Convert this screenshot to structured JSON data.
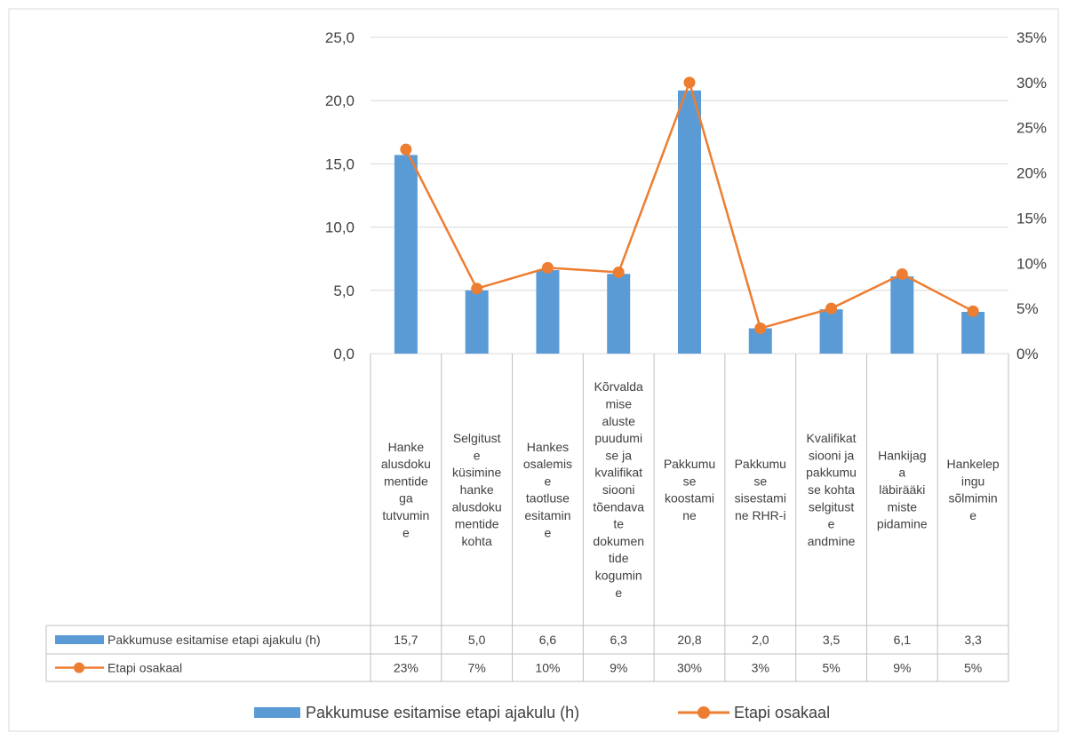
{
  "colors": {
    "bar": "#5B9BD5",
    "line": "#ED7D31",
    "grid": "#D9D9D9",
    "text": "#404040"
  },
  "chart_data": {
    "type": "bar",
    "categories": [
      "Hanke alusdokumentidega tutvumine",
      "Selgituste küsimine hanke alusdokumentide kohta",
      "Hankes osalemise taotluse esitamine",
      "Kõrvaldamise aluste puudumise ja kvalifikatsiooni tõendavate dokumentide kogumine",
      "Pakkumuse koostamine",
      "Pakkumuse sisestamine RHR-i",
      "Kvalifikatsiooni ja pakkumuse kohta selgituste andmine",
      "Hankijaga läbirääkimiste pidamine",
      "Hankelepingu sõlmimine"
    ],
    "category_display_lines": [
      [
        "Hanke",
        "alusdoku",
        "mentide",
        "ga",
        "tutvumin",
        "e"
      ],
      [
        "Selgitust",
        "e",
        "küsimine",
        "hanke",
        "alusdoku",
        "mentide",
        "kohta"
      ],
      [
        "Hankes",
        "osalemis",
        "e",
        "taotluse",
        "esitamin",
        "e"
      ],
      [
        "Kõrvalda",
        "mise",
        "aluste",
        "puudumi",
        "se ja",
        "kvalifikat",
        "siooni",
        "tõendava",
        "te",
        "dokumen",
        "tide",
        "kogumin",
        "e"
      ],
      [
        "Pakkumu",
        "se",
        "koostami",
        "ne"
      ],
      [
        "Pakkumu",
        "se",
        "sisestami",
        "ne RHR-i"
      ],
      [
        "Kvalifikat",
        "siooni ja",
        "pakkumu",
        "se kohta",
        "selgitust",
        "e",
        "andmine"
      ],
      [
        "Hankijag",
        "a",
        "läbirääki",
        "miste",
        "pidamine"
      ],
      [
        "Hankelep",
        "ingu",
        "sõlmimin",
        "e"
      ]
    ],
    "series": [
      {
        "name": "Pakkumuse esitamise etapi ajakulu (h)",
        "type": "bar",
        "axis": "left",
        "values": [
          15.7,
          5.0,
          6.6,
          6.3,
          20.8,
          2.0,
          3.5,
          6.1,
          3.3
        ],
        "labels": [
          "15,7",
          "5,0",
          "6,6",
          "6,3",
          "20,8",
          "2,0",
          "3,5",
          "6,1",
          "3,3"
        ]
      },
      {
        "name": "Etapi osakaal",
        "type": "line",
        "axis": "right",
        "values": [
          23,
          7,
          10,
          9,
          30,
          3,
          5,
          9,
          5
        ],
        "plotted_values": [
          22.6,
          7.2,
          9.5,
          9.0,
          30.0,
          2.8,
          5.0,
          8.8,
          4.7
        ],
        "labels": [
          "23%",
          "7%",
          "10%",
          "9%",
          "30%",
          "3%",
          "5%",
          "9%",
          "5%"
        ]
      }
    ],
    "ylim_left": [
      0,
      25
    ],
    "yticks_left": [
      "0,0",
      "5,0",
      "10,0",
      "15,0",
      "20,0",
      "25,0"
    ],
    "ylim_right": [
      0,
      35
    ],
    "yticks_right": [
      "0%",
      "5%",
      "10%",
      "15%",
      "20%",
      "25%",
      "30%",
      "35%"
    ],
    "grid": true,
    "data_table": true,
    "legend_position": "bottom"
  }
}
